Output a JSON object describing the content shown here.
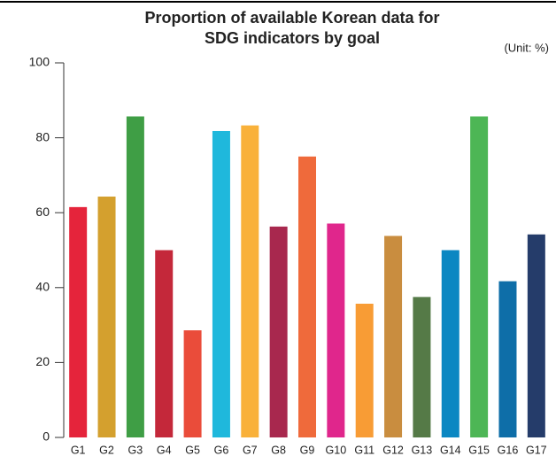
{
  "chart_data": {
    "type": "bar",
    "title": [
      "Proportion of available Korean data for",
      "SDG indicators by goal"
    ],
    "unit": "(Unit: %)",
    "categories": [
      "G1",
      "G2",
      "G3",
      "G4",
      "G5",
      "G6",
      "G7",
      "G8",
      "G9",
      "G10",
      "G11",
      "G12",
      "G13",
      "G14",
      "G15",
      "G16",
      "G17"
    ],
    "values": [
      61.5,
      64.3,
      85.7,
      50,
      28.6,
      81.8,
      83.3,
      56.3,
      75,
      57.1,
      35.7,
      53.8,
      37.5,
      50,
      85.7,
      41.7,
      54.2
    ],
    "colors": [
      "#e5243b",
      "#d4a02e",
      "#3f9e45",
      "#c4283a",
      "#ea4c3a",
      "#1fb8dc",
      "#f9b13a",
      "#a8284e",
      "#ef6a3b",
      "#e0268c",
      "#f89c35",
      "#c98d3f",
      "#557a47",
      "#0b87c2",
      "#4db655",
      "#0e6ea8",
      "#253c6a"
    ],
    "ylim": [
      0,
      100
    ],
    "yticks": [
      0,
      20,
      40,
      60,
      80,
      100
    ]
  }
}
